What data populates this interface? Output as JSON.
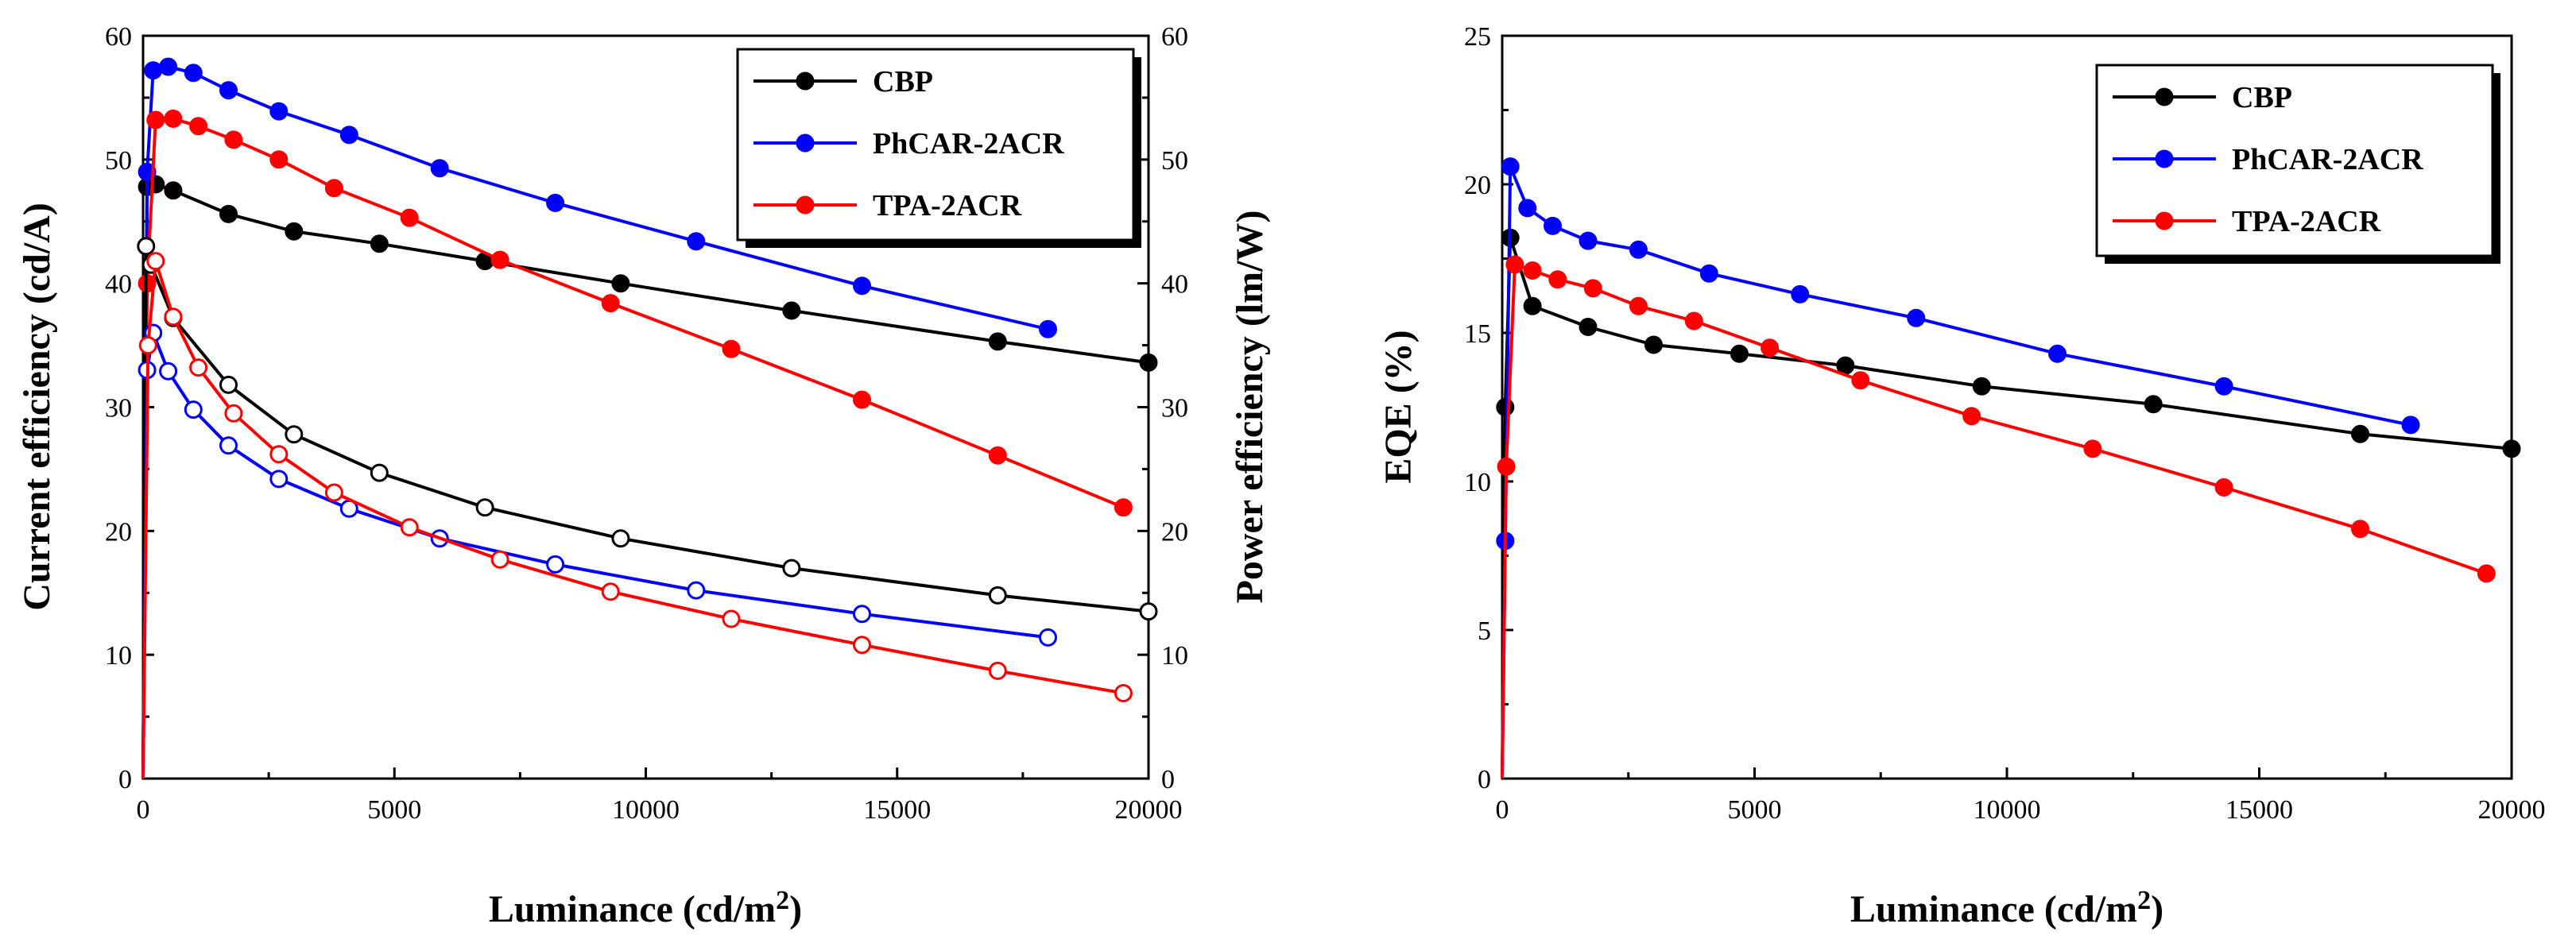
{
  "colors": {
    "CBP": "#000000",
    "PhCAR-2ACR": "#0000ff",
    "TPA-2ACR": "#ff0000"
  },
  "chart_data": [
    {
      "type": "line",
      "title": "",
      "xlabel": "Luminance (cd/m",
      "xlabel_sup": "2",
      "xlabel_close": ")",
      "ylabel": "Current efficiency (cd/A)",
      "y2label": "Power efficiency (lm/W)",
      "xlim": [
        0,
        20000
      ],
      "ylim": [
        0,
        60
      ],
      "y2lim": [
        0,
        60
      ],
      "xticks": [
        "0",
        "5000",
        "10000",
        "15000",
        "20000"
      ],
      "yticks": [
        "0",
        "10",
        "20",
        "30",
        "40",
        "50",
        "60"
      ],
      "y2ticks": [
        "0",
        "10",
        "20",
        "30",
        "40",
        "50",
        "60"
      ],
      "legend": [
        "CBP",
        "PhCAR-2ACR",
        "TPA-2ACR"
      ],
      "legend_position": "top-right",
      "series": [
        {
          "name": "CBP",
          "axis": "left",
          "marker": "filled",
          "x": [
            0,
            80,
            250,
            600,
            1700,
            3000,
            4700,
            6800,
            9500,
            12900,
            17000,
            20000
          ],
          "y": [
            0,
            47.8,
            48,
            47.5,
            45.6,
            44.2,
            43.2,
            41.8,
            40,
            37.8,
            35.3,
            33.6
          ]
        },
        {
          "name": "PhCAR-2ACR",
          "axis": "left",
          "marker": "filled",
          "x": [
            0,
            80,
            200,
            500,
            1000,
            1700,
            2700,
            4100,
            5900,
            8200,
            11000,
            14300,
            18000
          ],
          "y": [
            0,
            49,
            57.2,
            57.5,
            57,
            55.6,
            53.9,
            52,
            49.3,
            46.5,
            43.4,
            39.8,
            36.3
          ]
        },
        {
          "name": "TPA-2ACR",
          "axis": "left",
          "marker": "filled",
          "x": [
            0,
            80,
            250,
            600,
            1100,
            1800,
            2700,
            3800,
            5300,
            7100,
            9300,
            11700,
            14300,
            17000,
            19500
          ],
          "y": [
            0,
            40,
            53.2,
            53.3,
            52.7,
            51.6,
            50,
            47.7,
            45.3,
            41.9,
            38.4,
            34.7,
            30.6,
            26.1,
            21.9
          ]
        },
        {
          "name": "CBP",
          "axis": "right",
          "marker": "open",
          "x": [
            0,
            60,
            160,
            600,
            1700,
            3000,
            4700,
            6800,
            9500,
            12900,
            17000,
            20000
          ],
          "y": [
            0,
            43,
            41.5,
            37.2,
            31.8,
            27.8,
            24.7,
            21.9,
            19.4,
            17,
            14.8,
            13.5
          ]
        },
        {
          "name": "PhCAR-2ACR",
          "axis": "right",
          "marker": "open",
          "x": [
            0,
            80,
            200,
            500,
            1000,
            1700,
            2700,
            4100,
            5900,
            8200,
            11000,
            14300,
            18000
          ],
          "y": [
            0,
            33,
            36,
            32.9,
            29.8,
            26.9,
            24.2,
            21.8,
            19.4,
            17.3,
            15.2,
            13.3,
            11.4
          ]
        },
        {
          "name": "TPA-2ACR",
          "axis": "right",
          "marker": "open",
          "x": [
            0,
            100,
            250,
            600,
            1100,
            1800,
            2700,
            3800,
            5300,
            7100,
            9300,
            11700,
            14300,
            17000,
            19500
          ],
          "y": [
            0,
            35,
            41.8,
            37.3,
            33.2,
            29.5,
            26.2,
            23.1,
            20.3,
            17.7,
            15.1,
            12.9,
            10.8,
            8.7,
            6.9
          ]
        }
      ]
    },
    {
      "type": "line",
      "title": "",
      "xlabel": "Luminance (cd/m",
      "xlabel_sup": "2",
      "xlabel_close": ")",
      "ylabel": "EQE (%)",
      "xlim": [
        0,
        20000
      ],
      "ylim": [
        0,
        25
      ],
      "xticks": [
        "0",
        "5000",
        "10000",
        "15000",
        "20000"
      ],
      "yticks": [
        "0",
        "5",
        "10",
        "15",
        "20",
        "25"
      ],
      "legend": [
        "CBP",
        "PhCAR-2ACR",
        "TPA-2ACR"
      ],
      "legend_position": "top-right",
      "series": [
        {
          "name": "CBP",
          "marker": "filled",
          "x": [
            0,
            60,
            160,
            600,
            1700,
            3000,
            4700,
            6800,
            9500,
            12900,
            17000,
            20000
          ],
          "y": [
            0,
            12.5,
            18.2,
            15.9,
            15.2,
            14.6,
            14.3,
            13.9,
            13.2,
            12.6,
            11.6,
            11.1
          ]
        },
        {
          "name": "PhCAR-2ACR",
          "marker": "filled",
          "x": [
            0,
            60,
            160,
            500,
            1000,
            1700,
            2700,
            4100,
            5900,
            8200,
            11000,
            14300,
            18000
          ],
          "y": [
            0,
            8,
            20.6,
            19.2,
            18.6,
            18.1,
            17.8,
            17,
            16.3,
            15.5,
            14.3,
            13.2,
            11.9
          ]
        },
        {
          "name": "TPA-2ACR",
          "marker": "filled",
          "x": [
            0,
            80,
            250,
            600,
            1100,
            1800,
            2700,
            3800,
            5300,
            7100,
            9300,
            11700,
            14300,
            17000,
            19500
          ],
          "y": [
            0,
            10.5,
            17.3,
            17.1,
            16.8,
            16.5,
            15.9,
            15.4,
            14.5,
            13.4,
            12.2,
            11.1,
            9.8,
            8.4,
            6.9
          ]
        }
      ]
    }
  ]
}
